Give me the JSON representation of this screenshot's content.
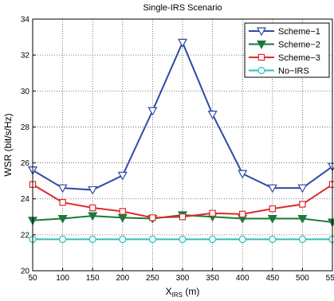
{
  "chart_data": {
    "type": "line",
    "title": "Single-IRS Scenario",
    "ylabel": "WSR (bit/s/Hz)",
    "xlabel_main": "X",
    "xlabel_sub": "IRS",
    "xlabel_unit": " (m)",
    "xlim": [
      50,
      550
    ],
    "ylim": [
      20,
      34
    ],
    "xticks": [
      "50",
      "100",
      "150",
      "200",
      "250",
      "300",
      "350",
      "400",
      "450",
      "500",
      "550"
    ],
    "yticks": [
      "20",
      "22",
      "24",
      "26",
      "28",
      "30",
      "32",
      "34"
    ],
    "grid": true,
    "legend_position": "top-right",
    "x": [
      50,
      100,
      150,
      200,
      250,
      300,
      350,
      400,
      450,
      500,
      550
    ],
    "series": [
      {
        "name": "Scheme−1",
        "color": "#2e4aa6",
        "marker": "triangle-down-open",
        "values": [
          25.6,
          24.6,
          24.5,
          25.3,
          28.9,
          32.7,
          28.7,
          25.4,
          24.6,
          24.6,
          25.8
        ]
      },
      {
        "name": "Scheme−2",
        "color": "#1a7a3a",
        "marker": "triangle-down-filled",
        "values": [
          22.8,
          22.9,
          23.05,
          22.95,
          22.9,
          23.1,
          23.0,
          22.9,
          22.9,
          22.9,
          22.7
        ]
      },
      {
        "name": "Scheme−3",
        "color": "#e0282c",
        "marker": "square-open",
        "values": [
          24.8,
          23.8,
          23.5,
          23.3,
          22.95,
          23.0,
          23.2,
          23.15,
          23.45,
          23.7,
          24.8
        ]
      },
      {
        "name": "No−IRS",
        "color": "#2bbfbf",
        "marker": "circle-open",
        "values": [
          21.75,
          21.75,
          21.75,
          21.75,
          21.75,
          21.75,
          21.75,
          21.75,
          21.75,
          21.75,
          21.75
        ]
      }
    ]
  }
}
